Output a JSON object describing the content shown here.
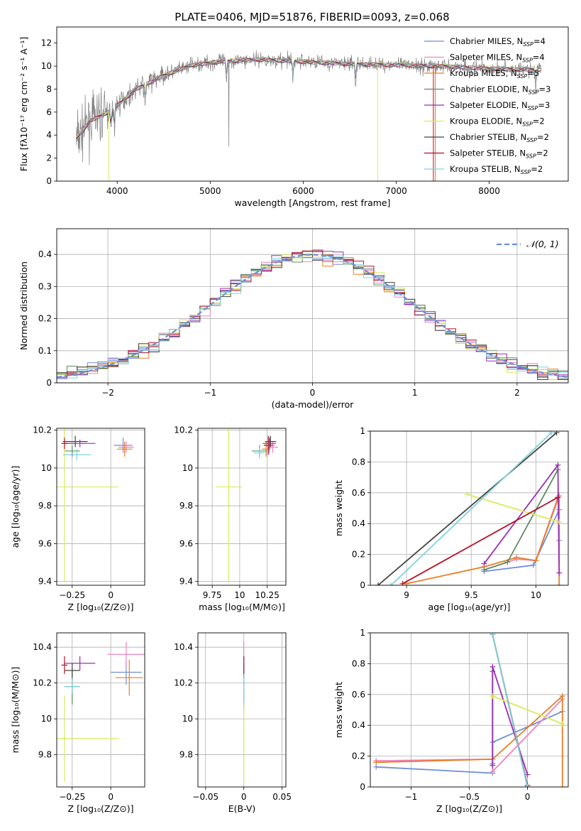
{
  "title": "PLATE=0406, MJD=51876, FIBERID=0093, z=0.068",
  "colors": {
    "chabrier_miles": "#6d8fd9",
    "salpeter_miles": "#ee82c0",
    "kroupa_miles": "#e87d24",
    "chabrier_elodie": "#5f8c65",
    "salpeter_elodie": "#9a2fb5",
    "kroupa_elodie": "#d9ea5e",
    "chabrier_stelib": "#444444",
    "salpeter_stelib": "#b3122a",
    "kroupa_stelib": "#7fd3de",
    "data": "#808080",
    "normal": "#6d8fd9"
  },
  "legend": [
    {
      "key": "chabrier_miles",
      "label": "Chabrier MILES, N",
      "sub": "SSP",
      "suffix": "=4"
    },
    {
      "key": "salpeter_miles",
      "label": "Salpeter MILES, N",
      "sub": "SSP",
      "suffix": "=4"
    },
    {
      "key": "kroupa_miles",
      "label": "Kroupa MILES, N",
      "sub": "SSP",
      "suffix": "=5"
    },
    {
      "key": "chabrier_elodie",
      "label": "Chabrier ELODIE, N",
      "sub": "SSP",
      "suffix": "=3"
    },
    {
      "key": "salpeter_elodie",
      "label": "Salpeter ELODIE, N",
      "sub": "SSP",
      "suffix": "=3"
    },
    {
      "key": "kroupa_elodie",
      "label": "Kroupa ELODIE, N",
      "sub": "SSP",
      "suffix": "=2"
    },
    {
      "key": "chabrier_stelib",
      "label": "Chabrier STELIB, N",
      "sub": "SSP",
      "suffix": "=2"
    },
    {
      "key": "salpeter_stelib",
      "label": "Salpeter STELIB, N",
      "sub": "SSP",
      "suffix": "=2"
    },
    {
      "key": "kroupa_stelib",
      "label": "Kroupa STELIB, N",
      "sub": "SSP",
      "suffix": "=2"
    }
  ],
  "chart_data": [
    {
      "id": "spectrum",
      "type": "line",
      "xlabel": "wavelength [Angstrom, rest frame]",
      "ylabel": "Flux [fλ10⁻¹⁷ erg cm⁻² s⁻¹ A⁻¹]",
      "xlim": [
        3350,
        8850
      ],
      "ylim": [
        0,
        13.4
      ],
      "xticks": [
        4000,
        5000,
        6000,
        7000,
        8000
      ],
      "yticks": [
        0,
        2,
        4,
        6,
        8,
        10,
        12
      ],
      "continuum": [
        [
          3560,
          3.6
        ],
        [
          3700,
          5.2
        ],
        [
          3900,
          6.0
        ],
        [
          4000,
          6.6
        ],
        [
          4200,
          8.0
        ],
        [
          4500,
          9.2
        ],
        [
          4800,
          10.1
        ],
        [
          5100,
          10.4
        ],
        [
          5500,
          10.6
        ],
        [
          6000,
          10.4
        ],
        [
          6500,
          10.2
        ],
        [
          7000,
          10.1
        ],
        [
          7500,
          10.0
        ],
        [
          8000,
          9.8
        ],
        [
          8500,
          9.7
        ]
      ],
      "absorption_lines": [
        [
          3934,
          5.0
        ],
        [
          3969,
          5.1
        ],
        [
          4300,
          7.2
        ],
        [
          5175,
          8.3
        ],
        [
          5890,
          8.8
        ],
        [
          6563,
          9.5
        ],
        [
          8500,
          8.8
        ]
      ],
      "model_dropouts": [
        {
          "key": "kroupa_elodie",
          "x": 3910
        },
        {
          "key": "kroupa_elodie",
          "x": 6800
        },
        {
          "key": "salpeter_stelib",
          "x": 7400
        },
        {
          "key": "kroupa_miles",
          "x": 7420
        }
      ]
    },
    {
      "id": "residuals",
      "type": "histogram",
      "xlabel": "(data-model)/error",
      "ylabel": "Normed distribution",
      "xlim": [
        -2.5,
        2.5
      ],
      "ylim": [
        0,
        0.48
      ],
      "xticks": [
        -2,
        -1,
        0,
        1,
        2
      ],
      "yticks": [
        0.0,
        0.1,
        0.2,
        0.3,
        0.4
      ],
      "legend_label": "𝒩(0, 1)",
      "bin_width": 0.1
    },
    {
      "id": "age_vs_Z",
      "type": "scatter",
      "xlabel": "Z [log₁₀(Z/Z⊙)]",
      "ylabel": "age  [log₁₀(age/yr)]",
      "xlim": [
        -0.35,
        0.22
      ],
      "ylim": [
        9.38,
        10.21
      ],
      "xticks": [
        -0.25,
        0.0
      ],
      "yticks": [
        9.4,
        9.6,
        9.8,
        10.0,
        10.2
      ],
      "points": [
        {
          "key": "chabrier_miles",
          "x": 0.08,
          "y": 10.12,
          "xerr": 0.06,
          "yerr": 0.04
        },
        {
          "key": "salpeter_miles",
          "x": 0.1,
          "y": 10.11,
          "xerr": 0.05,
          "yerr": 0.03
        },
        {
          "key": "kroupa_miles",
          "x": 0.09,
          "y": 10.1,
          "xerr": 0.05,
          "yerr": 0.04
        },
        {
          "key": "chabrier_elodie",
          "x": -0.25,
          "y": 10.09,
          "xerr": 0.05,
          "yerr": 0.03
        },
        {
          "key": "salpeter_elodie",
          "x": -0.2,
          "y": 10.13,
          "xerr": 0.1,
          "yerr": 0.02
        },
        {
          "key": "kroupa_elodie",
          "x": -0.3,
          "y": 9.9,
          "xerr": 0.35,
          "yerr": 0.5
        },
        {
          "key": "chabrier_stelib",
          "x": -0.23,
          "y": 10.14,
          "xerr": 0.08,
          "yerr": 0.03
        },
        {
          "key": "salpeter_stelib",
          "x": -0.3,
          "y": 10.13,
          "xerr": 0.02,
          "yerr": 0.03
        },
        {
          "key": "kroupa_stelib",
          "x": -0.22,
          "y": 10.07,
          "xerr": 0.09,
          "yerr": 0.03
        }
      ]
    },
    {
      "id": "age_vs_mass",
      "type": "scatter",
      "xlabel": "mass [log₁₀(M/M⊙)]",
      "ylabel": "",
      "xlim": [
        9.62,
        10.42
      ],
      "ylim": [
        9.38,
        10.21
      ],
      "xticks": [
        9.75,
        10.0,
        10.25
      ],
      "yticks": [
        9.4,
        9.6,
        9.8,
        10.0,
        10.2
      ],
      "points": [
        {
          "key": "chabrier_miles",
          "x": 10.27,
          "y": 10.12,
          "xerr": 0.05,
          "yerr": 0.04
        },
        {
          "key": "salpeter_miles",
          "x": 10.3,
          "y": 10.11,
          "xerr": 0.05,
          "yerr": 0.03
        },
        {
          "key": "kroupa_miles",
          "x": 10.24,
          "y": 10.1,
          "xerr": 0.04,
          "yerr": 0.04
        },
        {
          "key": "chabrier_elodie",
          "x": 10.18,
          "y": 10.09,
          "xerr": 0.07,
          "yerr": 0.03
        },
        {
          "key": "salpeter_elodie",
          "x": 10.27,
          "y": 10.13,
          "xerr": 0.06,
          "yerr": 0.03
        },
        {
          "key": "kroupa_elodie",
          "x": 9.9,
          "y": 9.9,
          "xerr": 0.12,
          "yerr": 0.5
        },
        {
          "key": "chabrier_stelib",
          "x": 10.28,
          "y": 10.14,
          "xerr": 0.05,
          "yerr": 0.03
        },
        {
          "key": "salpeter_stelib",
          "x": 10.26,
          "y": 10.12,
          "xerr": 0.04,
          "yerr": 0.05
        },
        {
          "key": "kroupa_stelib",
          "x": 10.18,
          "y": 10.08,
          "xerr": 0.05,
          "yerr": 0.03
        }
      ]
    },
    {
      "id": "weight_vs_age",
      "type": "line",
      "xlabel": "age  [log₁₀(age/yr)]",
      "ylabel": "mass weight",
      "xlim": [
        8.72,
        10.25
      ],
      "ylim": [
        0.0,
        1.0
      ],
      "xticks": [
        9.0,
        9.5,
        10.0
      ],
      "yticks": [
        0.0,
        0.2,
        0.4,
        0.6,
        0.8,
        1.0
      ],
      "series": [
        {
          "key": "chabrier_miles",
          "points": [
            [
              9.6,
              0.09
            ],
            [
              9.98,
              0.13
            ],
            [
              10.18,
              0.49
            ],
            [
              10.18,
              0.29
            ]
          ]
        },
        {
          "key": "salpeter_miles",
          "points": [
            [
              9.6,
              0.1
            ],
            [
              9.85,
              0.17
            ],
            [
              10.0,
              0.16
            ],
            [
              10.17,
              0.57
            ]
          ]
        },
        {
          "key": "kroupa_miles",
          "points": [
            [
              9.0,
              0.01
            ],
            [
              9.6,
              0.12
            ],
            [
              9.85,
              0.18
            ],
            [
              10.0,
              0.16
            ],
            [
              10.18,
              0.58
            ],
            [
              10.18,
              0.0
            ]
          ]
        },
        {
          "key": "chabrier_elodie",
          "points": [
            [
              9.6,
              0.1
            ],
            [
              9.78,
              0.15
            ],
            [
              10.17,
              0.75
            ]
          ]
        },
        {
          "key": "salpeter_elodie",
          "points": [
            [
              9.6,
              0.14
            ],
            [
              10.17,
              0.78
            ],
            [
              10.18,
              0.08
            ]
          ]
        },
        {
          "key": "kroupa_elodie",
          "points": [
            [
              9.47,
              0.59
            ],
            [
              10.18,
              0.41
            ]
          ]
        },
        {
          "key": "chabrier_stelib",
          "points": [
            [
              8.78,
              0.0
            ],
            [
              10.16,
              0.99
            ]
          ]
        },
        {
          "key": "salpeter_stelib",
          "points": [
            [
              8.97,
              0.01
            ],
            [
              10.17,
              0.57
            ]
          ]
        },
        {
          "key": "kroupa_stelib",
          "points": [
            [
              8.88,
              0.0
            ],
            [
              10.12,
              0.99
            ]
          ]
        }
      ]
    },
    {
      "id": "mass_vs_Z",
      "type": "scatter",
      "xlabel": "Z [log₁₀(Z/Z⊙)]",
      "ylabel": "mass [log₁₀(M/M⊙)]",
      "xlim": [
        -0.35,
        0.22
      ],
      "ylim": [
        9.62,
        10.48
      ],
      "xticks": [
        -0.25,
        0.0
      ],
      "yticks": [
        9.8,
        10.0,
        10.2,
        10.4
      ],
      "points": [
        {
          "key": "chabrier_miles",
          "x": 0.1,
          "y": 10.26,
          "xerr": 0.1,
          "yerr": 0.07
        },
        {
          "key": "salpeter_miles",
          "x": 0.1,
          "y": 10.36,
          "xerr": 0.12,
          "yerr": 0.07
        },
        {
          "key": "kroupa_miles",
          "x": 0.12,
          "y": 10.23,
          "xerr": 0.09,
          "yerr": 0.1
        },
        {
          "key": "chabrier_elodie",
          "x": -0.25,
          "y": 10.18,
          "xerr": 0.05,
          "yerr": 0.1
        },
        {
          "key": "salpeter_elodie",
          "x": -0.2,
          "y": 10.31,
          "xerr": 0.1,
          "yerr": 0.04
        },
        {
          "key": "kroupa_elodie",
          "x": -0.3,
          "y": 9.89,
          "xerr": 0.35,
          "yerr": 0.24
        },
        {
          "key": "chabrier_stelib",
          "x": -0.25,
          "y": 10.27,
          "xerr": 0.05,
          "yerr": 0.04
        },
        {
          "key": "salpeter_stelib",
          "x": -0.3,
          "y": 10.3,
          "xerr": 0.02,
          "yerr": 0.05
        },
        {
          "key": "kroupa_stelib",
          "x": -0.25,
          "y": 10.18,
          "xerr": 0.05,
          "yerr": 0.04
        }
      ]
    },
    {
      "id": "mass_vs_ebv",
      "type": "scatter",
      "xlabel": "E(B-V)",
      "ylabel": "",
      "xlim": [
        -0.06,
        0.055
      ],
      "ylim": [
        9.62,
        10.48
      ],
      "xticks": [
        -0.05,
        0.0,
        0.05
      ],
      "yticks": [
        9.8,
        10.0,
        10.2,
        10.4
      ],
      "points": [
        {
          "key": "kroupa_elodie",
          "x": 0.0,
          "y": 9.89,
          "xerr": 0.0,
          "yerr": 0.24
        },
        {
          "key": "salpeter_miles",
          "x": 0.0,
          "y": 10.36,
          "xerr": 0.0,
          "yerr": 0.07
        },
        {
          "key": "chabrier_miles",
          "x": 0.0,
          "y": 10.2,
          "xerr": 0.0,
          "yerr": 0.1
        },
        {
          "key": "salpeter_stelib",
          "x": 0.0,
          "y": 10.3,
          "xerr": 0.0,
          "yerr": 0.05
        },
        {
          "key": "kroupa_stelib",
          "x": 0.0,
          "y": 10.15,
          "xerr": 0.0,
          "yerr": 0.08
        }
      ]
    },
    {
      "id": "weight_vs_Z",
      "type": "line",
      "xlabel": "Z [log₁₀(Z/Z⊙)]",
      "ylabel": "mass weight",
      "xlim": [
        -1.35,
        0.35
      ],
      "ylim": [
        0.0,
        1.0
      ],
      "xticks": [
        -1.0,
        -0.5,
        0.0
      ],
      "yticks": [
        0.0,
        0.2,
        0.4,
        0.6,
        0.8,
        1.0
      ],
      "series": [
        {
          "key": "chabrier_miles",
          "points": [
            [
              -1.3,
              0.13
            ],
            [
              -0.3,
              0.09
            ],
            [
              -0.3,
              0.29
            ],
            [
              0.3,
              0.49
            ]
          ]
        },
        {
          "key": "salpeter_miles",
          "points": [
            [
              -1.3,
              0.17
            ],
            [
              -0.3,
              0.18
            ],
            [
              -0.3,
              0.1
            ],
            [
              0.3,
              0.57
            ]
          ]
        },
        {
          "key": "kroupa_miles",
          "points": [
            [
              -1.3,
              0.16
            ],
            [
              -0.3,
              0.18
            ],
            [
              0.3,
              0.59
            ],
            [
              0.3,
              0.0
            ]
          ]
        },
        {
          "key": "chabrier_elodie",
          "points": [
            [
              -0.3,
              0.15
            ],
            [
              -0.3,
              0.75
            ]
          ]
        },
        {
          "key": "salpeter_elodie",
          "points": [
            [
              -0.3,
              0.14
            ],
            [
              -0.3,
              0.78
            ],
            [
              0.0,
              0.08
            ]
          ]
        },
        {
          "key": "kroupa_elodie",
          "points": [
            [
              -0.3,
              0.59
            ],
            [
              0.3,
              0.41
            ]
          ]
        },
        {
          "key": "chabrier_stelib",
          "points": [
            [
              -0.3,
              0.99
            ],
            [
              0.0,
              0.0
            ]
          ]
        },
        {
          "key": "salpeter_stelib",
          "points": [
            [
              -0.3,
              0.99
            ],
            [
              0.0,
              0.01
            ]
          ]
        },
        {
          "key": "kroupa_stelib",
          "points": [
            [
              -0.3,
              0.99
            ],
            [
              0.0,
              0.0
            ]
          ]
        }
      ]
    }
  ]
}
